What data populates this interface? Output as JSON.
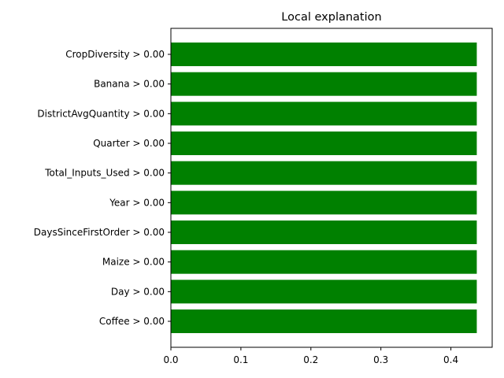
{
  "chart_data": {
    "type": "bar",
    "orientation": "horizontal",
    "title": "Local explanation",
    "xlabel": "",
    "ylabel": "",
    "categories": [
      "CropDiversity > 0.00",
      "Banana > 0.00",
      "DistrictAvgQuantity > 0.00",
      "Quarter > 0.00",
      "Total_Inputs_Used > 0.00",
      "Year > 0.00",
      "DaysSinceFirstOrder > 0.00",
      "Maize > 0.00",
      "Day > 0.00",
      "Coffee > 0.00"
    ],
    "values": [
      0.437,
      0.437,
      0.437,
      0.437,
      0.437,
      0.437,
      0.437,
      0.437,
      0.437,
      0.437
    ],
    "xlim": [
      0,
      0.459
    ],
    "xticks": [
      "0.0",
      "0.1",
      "0.2",
      "0.3",
      "0.4"
    ],
    "grid": false,
    "bar_color": "#008000"
  }
}
